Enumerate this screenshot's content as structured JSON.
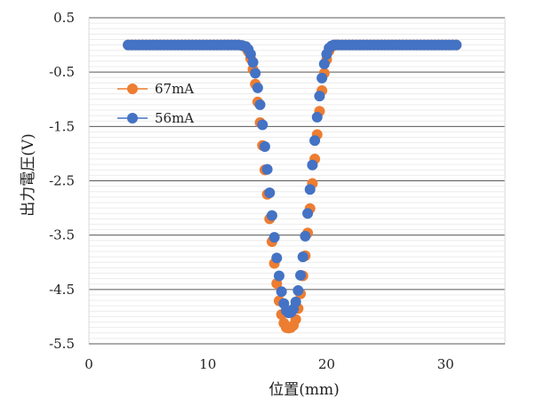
{
  "chart_data": {
    "type": "scatter",
    "xlabel": "位置(mm)",
    "ylabel": "出力電圧(V)",
    "xlim": [
      0,
      35
    ],
    "ylim": [
      -5.5,
      0.5
    ],
    "xticks": [
      0,
      10,
      20,
      30
    ],
    "xtick_labels": [
      "0",
      "10",
      "20",
      "30"
    ],
    "yticks": [
      0.5,
      -0.5,
      -1.5,
      -2.5,
      -3.5,
      -4.5,
      -5.5
    ],
    "ytick_labels": [
      "0.5",
      "-0.5",
      "-1.5",
      "-2.5",
      "-3.5",
      "-4.5",
      "-5.5"
    ],
    "grid": {
      "major": true,
      "minor": true
    },
    "legend_position": "left",
    "series": [
      {
        "name": "67mA",
        "color": "#ED7D31",
        "x": [
          3.3,
          3.6,
          3.9,
          4.2,
          4.5,
          4.8,
          5.1,
          5.4,
          5.7,
          6.0,
          6.3,
          6.6,
          6.9,
          7.2,
          7.5,
          7.8,
          8.1,
          8.4,
          8.7,
          9.0,
          9.3,
          9.6,
          9.9,
          10.2,
          10.5,
          10.8,
          11.1,
          11.4,
          11.7,
          12.0,
          12.3,
          12.6,
          12.9,
          13.2,
          13.4,
          13.6,
          13.8,
          14.0,
          14.2,
          14.4,
          14.6,
          14.8,
          15.0,
          15.2,
          15.4,
          15.6,
          15.8,
          16.0,
          16.2,
          16.4,
          16.6,
          16.8,
          17.0,
          17.2,
          17.4,
          17.6,
          17.8,
          18.0,
          18.2,
          18.4,
          18.6,
          18.8,
          19.0,
          19.2,
          19.4,
          19.6,
          19.8,
          20.0,
          20.2,
          20.4,
          20.6,
          20.8,
          21.0,
          21.3,
          21.6,
          21.9,
          22.2,
          22.5,
          22.8,
          23.1,
          23.4,
          23.7,
          24.0,
          24.3,
          24.6,
          24.9,
          25.2,
          25.5,
          25.8,
          26.1,
          26.4,
          26.7,
          27.0,
          27.3,
          27.6,
          27.9,
          28.2,
          28.5,
          28.8,
          29.1,
          29.4,
          29.7,
          30.0,
          30.3,
          30.6,
          30.9
        ],
        "y": [
          0,
          0,
          0,
          0,
          0,
          0,
          0,
          0,
          0,
          0,
          0,
          0,
          0,
          0,
          0,
          0,
          0,
          0,
          0,
          0,
          0,
          0,
          0,
          0,
          0,
          0,
          0,
          0,
          0,
          0,
          0,
          0,
          -0.01,
          -0.05,
          -0.12,
          -0.25,
          -0.45,
          -0.72,
          -1.05,
          -1.43,
          -1.85,
          -2.3,
          -2.75,
          -3.2,
          -3.62,
          -4.02,
          -4.39,
          -4.71,
          -4.96,
          -5.12,
          -5.2,
          -5.21,
          -5.2,
          -5.16,
          -5.05,
          -4.85,
          -4.58,
          -4.25,
          -3.88,
          -3.46,
          -3.01,
          -2.55,
          -2.1,
          -1.65,
          -1.22,
          -0.84,
          -0.52,
          -0.27,
          -0.11,
          -0.03,
          -0.01,
          0,
          0,
          0,
          0,
          0,
          0,
          0,
          0,
          0,
          0,
          0,
          0,
          0,
          0,
          0,
          0,
          0,
          0,
          0,
          0,
          0,
          0,
          0,
          0,
          0,
          0,
          0,
          0,
          0,
          0,
          0,
          0,
          0,
          0,
          0
        ]
      },
      {
        "name": "56mA",
        "color": "#4472C4",
        "x": [
          3.3,
          3.6,
          3.9,
          4.2,
          4.5,
          4.8,
          5.1,
          5.4,
          5.7,
          6.0,
          6.3,
          6.6,
          6.9,
          7.2,
          7.5,
          7.8,
          8.1,
          8.4,
          8.7,
          9.0,
          9.3,
          9.6,
          9.9,
          10.2,
          10.5,
          10.8,
          11.1,
          11.4,
          11.7,
          12.0,
          12.3,
          12.6,
          12.9,
          13.2,
          13.4,
          13.6,
          13.8,
          14.0,
          14.2,
          14.4,
          14.6,
          14.8,
          15.0,
          15.2,
          15.4,
          15.6,
          15.8,
          16.0,
          16.2,
          16.4,
          16.6,
          16.8,
          17.0,
          17.2,
          17.4,
          17.6,
          17.8,
          18.0,
          18.2,
          18.4,
          18.6,
          18.8,
          19.0,
          19.2,
          19.4,
          19.6,
          19.8,
          20.0,
          20.2,
          20.4,
          20.6,
          20.8,
          21.0,
          21.3,
          21.6,
          21.9,
          22.2,
          22.5,
          22.8,
          23.1,
          23.4,
          23.7,
          24.0,
          24.3,
          24.6,
          24.9,
          25.2,
          25.5,
          25.8,
          26.1,
          26.4,
          26.7,
          27.0,
          27.3,
          27.6,
          27.9,
          28.2,
          28.5,
          28.8,
          29.1,
          29.4,
          29.7,
          30.0,
          30.3,
          30.6,
          30.9
        ],
        "y": [
          0,
          0,
          0,
          0,
          0,
          0,
          0,
          0,
          0,
          0,
          0,
          0,
          0,
          0,
          0,
          0,
          0,
          0,
          0,
          0,
          0,
          0,
          0,
          0,
          0,
          0,
          0,
          0,
          0,
          0,
          0,
          0,
          -0.01,
          -0.03,
          -0.08,
          -0.17,
          -0.32,
          -0.52,
          -0.79,
          -1.1,
          -1.47,
          -1.87,
          -2.29,
          -2.72,
          -3.14,
          -3.54,
          -3.92,
          -4.25,
          -4.54,
          -4.76,
          -4.89,
          -4.93,
          -4.92,
          -4.86,
          -4.73,
          -4.52,
          -4.24,
          -3.9,
          -3.52,
          -3.1,
          -2.66,
          -2.21,
          -1.76,
          -1.33,
          -0.94,
          -0.61,
          -0.35,
          -0.17,
          -0.06,
          -0.02,
          0,
          0,
          0,
          0,
          0,
          0,
          0,
          0,
          0,
          0,
          0,
          0,
          0,
          0,
          0,
          0,
          0,
          0,
          0,
          0,
          0,
          0,
          0,
          0,
          0,
          0,
          0,
          0,
          0,
          0,
          0,
          0,
          0,
          0,
          0,
          0
        ]
      }
    ]
  }
}
